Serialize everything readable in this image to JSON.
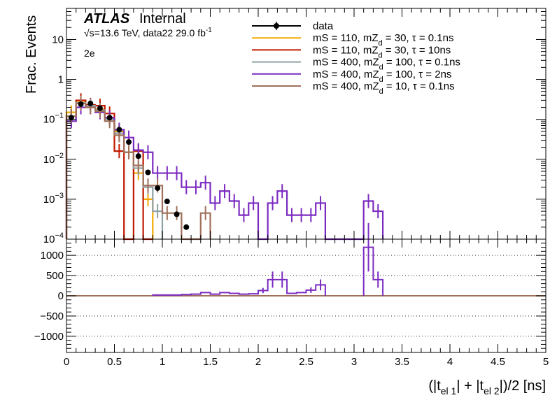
{
  "chart_data": [
    {
      "type": "histogram",
      "panel": "main",
      "experiment_label": "ATLAS",
      "experiment_status": "Internal",
      "energy_label": "√s=13.6 TeV, data22 29.0 fb⁻¹",
      "channel_label": "2e",
      "ylabel": "Frac. Events",
      "yscale": "log",
      "ylim": [
        0.0001,
        60
      ],
      "xlim": [
        0,
        5
      ],
      "bin_width": 0.1,
      "y_ticks": [
        {
          "value": 0.0001,
          "base": "10",
          "exp": "−4"
        },
        {
          "value": 0.001,
          "base": "10",
          "exp": "−3"
        },
        {
          "value": 0.01,
          "base": "10",
          "exp": "−2"
        },
        {
          "value": 0.1,
          "base": "10",
          "exp": "−1"
        },
        {
          "value": 1,
          "base": "1",
          "exp": ""
        },
        {
          "value": 10,
          "base": "10",
          "exp": ""
        }
      ],
      "legend": [
        {
          "kind": "marker",
          "text": "data",
          "color": "#000000"
        },
        {
          "kind": "line",
          "text": "mS = 110, mZ_d = 30, τ = 0.1ns",
          "color": "#f2a900"
        },
        {
          "kind": "line",
          "text": "mS = 110, mZ_d = 30, τ = 10ns",
          "color": "#c21a00"
        },
        {
          "kind": "line",
          "text": "mS = 400, mZ_d = 100, τ = 0.1ns",
          "color": "#8fa1a5"
        },
        {
          "kind": "line",
          "text": "mS = 400, mZ_d = 100, τ = 2ns",
          "color": "#7b2bc0"
        },
        {
          "kind": "line",
          "text": "mS = 400, mZ_d = 10, τ = 0.1ns",
          "color": "#a0705a"
        }
      ],
      "data_points": {
        "x": [
          0.05,
          0.15,
          0.25,
          0.35,
          0.45,
          0.55,
          0.65,
          0.75,
          0.85,
          0.95,
          1.05,
          1.15,
          1.25
        ],
        "y": [
          0.11,
          0.24,
          0.25,
          0.19,
          0.11,
          0.055,
          0.027,
          0.012,
          0.0047,
          0.0019,
          0.00088,
          0.00042,
          0.0002
        ]
      },
      "series": [
        {
          "name": "mS = 110, mZ_d = 30, τ = 0.1ns",
          "color": "#f2a900",
          "x_edges": [
            0,
            0.1,
            0.2,
            0.3,
            0.4,
            0.5,
            0.6,
            0.7,
            0.8,
            0.9
          ],
          "values": [
            0.15,
            0.27,
            0.22,
            0.18,
            0.11,
            0.05,
            0.015,
            0.0045,
            0.001
          ]
        },
        {
          "name": "mS = 110, mZ_d = 30, τ = 10ns",
          "color": "#c21a00",
          "x_edges": [
            0,
            0.1,
            0.2,
            0.3,
            0.4,
            0.5,
            0.6,
            0.7,
            0.8,
            0.9
          ],
          "values": [
            0.12,
            0.3,
            0.23,
            0.22,
            0.14,
            0.016,
            0.0,
            0.016,
            0.0
          ]
        },
        {
          "name": "mS = 400, mZ_d = 100, τ = 0.1ns",
          "color": "#8fa1a5",
          "x_edges": [
            0,
            0.1,
            0.2,
            0.3,
            0.4,
            0.5,
            0.6,
            0.7,
            0.8,
            0.9,
            1.0
          ],
          "values": [
            0.12,
            0.26,
            0.22,
            0.17,
            0.1,
            0.045,
            0.015,
            0.006,
            0.002,
            0.0005
          ]
        },
        {
          "name": "mS = 400, mZ_d = 100, τ = 2ns",
          "color": "#7b2bc0",
          "x_edges": [
            0,
            0.1,
            0.2,
            0.3,
            0.4,
            0.5,
            0.6,
            0.7,
            0.8,
            0.9,
            1.0,
            1.1,
            1.2,
            1.3,
            1.4,
            1.5,
            1.6,
            1.7,
            1.8,
            1.9,
            2.0,
            2.1,
            2.2,
            2.3,
            2.4,
            2.5,
            2.6,
            2.7,
            2.8,
            2.9,
            3.0,
            3.1,
            3.2,
            3.3
          ],
          "values": [
            0.09,
            0.2,
            0.2,
            0.15,
            0.11,
            0.055,
            0.035,
            0.017,
            0.015,
            0.0045,
            0.0045,
            0.0045,
            0.002,
            0.002,
            0.0026,
            0.0008,
            0.0016,
            0.0009,
            0.0004,
            0.0008,
            0.0,
            0.0008,
            0.0016,
            0.0004,
            0.0004,
            0.0004,
            0.0008,
            0.0,
            0.0,
            0.0,
            0.0,
            0.0009,
            0.0005
          ]
        },
        {
          "name": "mS = 400, mZ_d = 10, τ = 0.1ns",
          "color": "#a0705a",
          "x_edges": [
            0,
            0.1,
            0.2,
            0.3,
            0.4,
            0.5,
            0.6,
            0.7,
            0.8,
            0.9,
            1.0,
            1.1,
            1.2,
            1.3,
            1.4,
            1.5
          ],
          "values": [
            0.12,
            0.25,
            0.2,
            0.16,
            0.09,
            0.04,
            0.015,
            0.007,
            0.0022,
            0.0022,
            0.00045,
            0.00045,
            0.0,
            0.0,
            0.00045
          ]
        }
      ]
    },
    {
      "type": "histogram",
      "panel": "ratio",
      "xlabel": "(|t_el 1| + |t_el 2|)/2 [ns]",
      "xlim": [
        0,
        5
      ],
      "ylim": [
        -1400,
        1400
      ],
      "x_ticks": [
        "0",
        "0.5",
        "1",
        "1.5",
        "2",
        "2.5",
        "3",
        "3.5",
        "4",
        "4.5",
        "5"
      ],
      "y_ticks": [
        1000,
        500,
        0,
        -500,
        -1000
      ],
      "y_tick_labels": [
        "1000",
        "500",
        "0",
        "−500",
        "−1000"
      ],
      "reference_line": {
        "value": 0,
        "color": "#a0705a"
      },
      "series": [
        {
          "name": "mS = 400, mZ_d = 100, τ = 2ns",
          "color": "#7b2bc0",
          "x_edges": [
            0.9,
            1.0,
            1.1,
            1.2,
            1.3,
            1.4,
            1.5,
            1.6,
            1.7,
            1.8,
            1.9,
            2.0,
            2.1,
            2.2,
            2.3,
            2.4,
            2.5,
            2.6,
            2.7
          ],
          "values": [
            20,
            20,
            20,
            30,
            40,
            80,
            40,
            80,
            60,
            40,
            50,
            130,
            400,
            400,
            60,
            80,
            140,
            270
          ]
        },
        {
          "name": "mS = 400, mZ_d = 100, τ = 2ns",
          "color": "#7b2bc0",
          "x_edges": [
            3.1,
            3.2,
            3.3
          ],
          "values": [
            1200,
            400
          ]
        }
      ]
    }
  ]
}
